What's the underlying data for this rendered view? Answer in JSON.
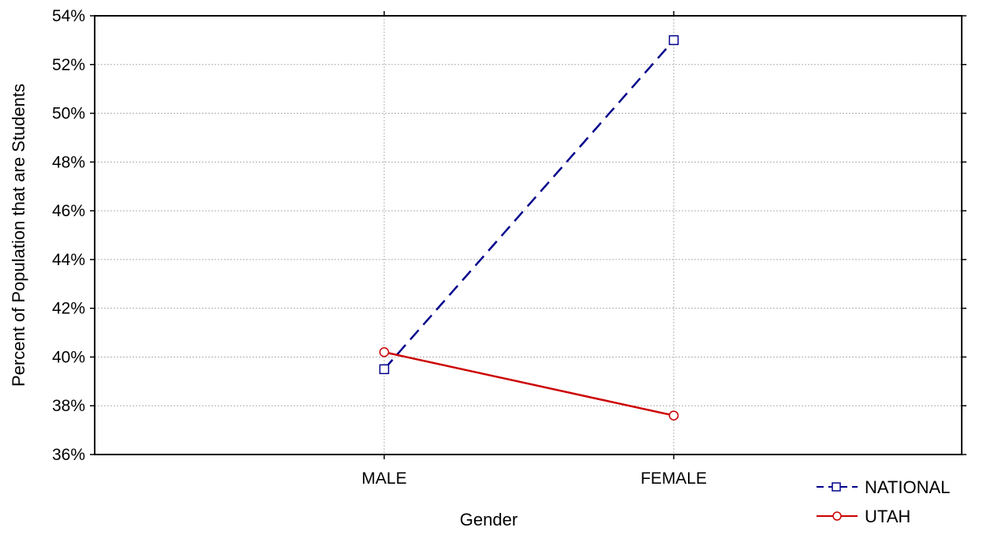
{
  "chart_data": {
    "type": "line",
    "title": "",
    "xlabel": "Gender",
    "ylabel": "Percent of Population that are Students",
    "categories": [
      "MALE",
      "FEMALE"
    ],
    "y_unit": "%",
    "ylim": [
      36,
      54
    ],
    "y_ticks": [
      36,
      38,
      40,
      42,
      44,
      46,
      48,
      50,
      52,
      54
    ],
    "y_tick_labels": [
      "36%",
      "38%",
      "40%",
      "42%",
      "44%",
      "46%",
      "48%",
      "50%",
      "52%",
      "54%"
    ],
    "grid": true,
    "legend_position": "bottom-right",
    "series": [
      {
        "name": "NATIONAL",
        "values": [
          39.5,
          53.0
        ],
        "color": "#00008b",
        "line_style": "dashed",
        "marker": "square"
      },
      {
        "name": "UTAH",
        "values": [
          40.2,
          37.6
        ],
        "color": "#cc0000",
        "line_style": "solid",
        "marker": "circle"
      }
    ]
  }
}
